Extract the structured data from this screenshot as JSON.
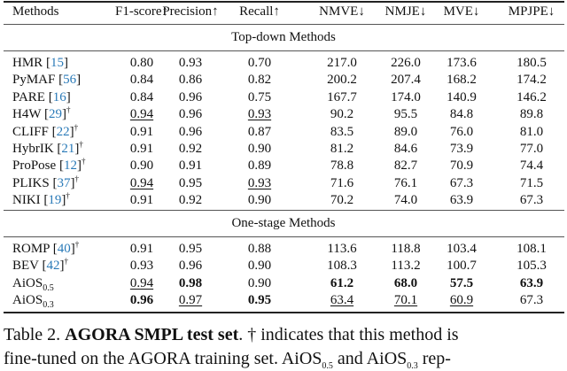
{
  "table": {
    "headers": [
      "Methods",
      "F1-score↑",
      "Precision↑",
      "Recall↑",
      "NMVE↓",
      "NMJE↓",
      "MVE↓",
      "MPJPE↓"
    ],
    "sections": [
      {
        "title": "Top-down Methods",
        "rows": [
          {
            "method": "HMR",
            "ref": "15",
            "dagger": false,
            "values": [
              "0.80",
              "0.93",
              "0.70",
              "217.0",
              "226.0",
              "173.6",
              "180.5"
            ],
            "bold": [],
            "underline": []
          },
          {
            "method": "PyMAF",
            "ref": "56",
            "dagger": false,
            "values": [
              "0.84",
              "0.86",
              "0.82",
              "200.2",
              "207.4",
              "168.2",
              "174.2"
            ],
            "bold": [],
            "underline": []
          },
          {
            "method": "PARE",
            "ref": "16",
            "dagger": false,
            "values": [
              "0.84",
              "0.96",
              "0.75",
              "167.7",
              "174.0",
              "140.9",
              "146.2"
            ],
            "bold": [],
            "underline": []
          },
          {
            "method": "H4W",
            "ref": "29",
            "dagger": true,
            "values": [
              "0.94",
              "0.96",
              "0.93",
              "90.2",
              "95.5",
              "84.8",
              "89.8"
            ],
            "bold": [],
            "underline": [
              0,
              2
            ]
          },
          {
            "method": "CLIFF",
            "ref": "22",
            "dagger": true,
            "values": [
              "0.91",
              "0.96",
              "0.87",
              "83.5",
              "89.0",
              "76.0",
              "81.0"
            ],
            "bold": [],
            "underline": []
          },
          {
            "method": "HybrIK",
            "ref": "21",
            "dagger": true,
            "values": [
              "0.91",
              "0.92",
              "0.90",
              "81.2",
              "84.6",
              "73.9",
              "77.0"
            ],
            "bold": [],
            "underline": []
          },
          {
            "method": "ProPose",
            "ref": "12",
            "dagger": true,
            "values": [
              "0.90",
              "0.91",
              "0.89",
              "78.8",
              "82.7",
              "70.9",
              "74.4"
            ],
            "bold": [],
            "underline": []
          },
          {
            "method": "PLIKS",
            "ref": "37",
            "dagger": true,
            "values": [
              "0.94",
              "0.95",
              "0.93",
              "71.6",
              "76.1",
              "67.3",
              "71.5"
            ],
            "bold": [],
            "underline": [
              0,
              2
            ]
          },
          {
            "method": "NIKI",
            "ref": "19",
            "dagger": true,
            "values": [
              "0.91",
              "0.92",
              "0.90",
              "70.2",
              "74.0",
              "63.9",
              "67.3"
            ],
            "bold": [],
            "underline": []
          }
        ]
      },
      {
        "title": "One-stage Methods",
        "rows": [
          {
            "method": "ROMP",
            "ref": "40",
            "dagger": true,
            "values": [
              "0.91",
              "0.95",
              "0.88",
              "113.6",
              "118.8",
              "103.4",
              "108.1"
            ],
            "bold": [],
            "underline": []
          },
          {
            "method": "BEV",
            "ref": "42",
            "dagger": true,
            "values": [
              "0.93",
              "0.96",
              "0.90",
              "108.3",
              "113.2",
              "100.7",
              "105.3"
            ],
            "bold": [],
            "underline": []
          },
          {
            "method": "AiOS",
            "sub": "0.5",
            "dagger": false,
            "values": [
              "0.94",
              "0.98",
              "0.90",
              "61.2",
              "68.0",
              "57.5",
              "63.9"
            ],
            "bold": [
              1,
              3,
              4,
              5,
              6
            ],
            "underline": [
              0
            ]
          },
          {
            "method": "AiOS",
            "sub": "0.3",
            "dagger": false,
            "values": [
              "0.96",
              "0.97",
              "0.95",
              "63.4",
              "70.1",
              "60.9",
              "67.3"
            ],
            "bold": [
              0,
              2
            ],
            "underline": [
              1,
              3,
              4,
              5
            ]
          }
        ]
      }
    ]
  },
  "caption": {
    "label": "Table 2.",
    "title": "AGORA SMPL test set",
    "line1_rest": ". † indicates that this method is",
    "line2": "fine-tuned on the AGORA training set. AiOS",
    "line2_sub1": "0.5",
    "line2_mid": " and AiOS",
    "line2_sub2": "0.3",
    "line2_end": " rep-"
  },
  "colors": {
    "reference_link": "#2a7ab8"
  }
}
